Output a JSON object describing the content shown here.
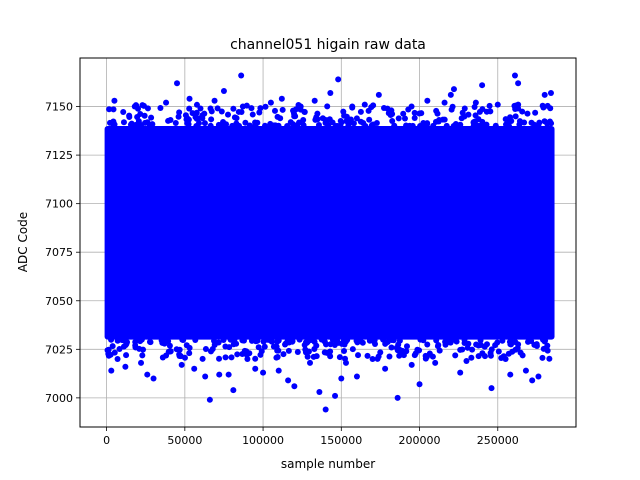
{
  "chart_data": {
    "type": "scatter",
    "title": "channel051 higain raw data",
    "xlabel": "sample number",
    "ylabel": "ADC Code",
    "xlim": [
      -17000,
      300000
    ],
    "ylim": [
      6985,
      7175
    ],
    "x_ticks": [
      0,
      50000,
      100000,
      150000,
      200000,
      250000
    ],
    "x_tick_labels": [
      "0",
      "50000",
      "100000",
      "150000",
      "200000",
      "250000"
    ],
    "y_ticks": [
      7000,
      7025,
      7050,
      7075,
      7100,
      7125,
      7150
    ],
    "y_tick_labels": [
      "7000",
      "7025",
      "7050",
      "7075",
      "7100",
      "7125",
      "7150"
    ],
    "grid": true,
    "series": [
      {
        "color": "#0000ff",
        "x_range": [
          0,
          285000
        ],
        "dense_band": [
          7030,
          7140
        ],
        "points": [
          [
            3000,
            7014
          ],
          [
            5000,
            7153
          ],
          [
            7000,
            7020
          ],
          [
            12000,
            7016
          ],
          [
            18000,
            7150
          ],
          [
            22000,
            7018
          ],
          [
            26000,
            7012
          ],
          [
            30000,
            7010
          ],
          [
            38000,
            7152
          ],
          [
            41000,
            7024
          ],
          [
            45000,
            7162
          ],
          [
            48000,
            7017
          ],
          [
            53000,
            7154
          ],
          [
            56000,
            7015
          ],
          [
            60000,
            7149
          ],
          [
            63000,
            7011
          ],
          [
            66000,
            6999
          ],
          [
            69000,
            7153
          ],
          [
            72000,
            7012
          ],
          [
            75000,
            7158
          ],
          [
            78000,
            7012
          ],
          [
            81000,
            7004
          ],
          [
            86000,
            7166
          ],
          [
            90000,
            7020
          ],
          [
            95000,
            7015
          ],
          [
            100000,
            7013
          ],
          [
            105000,
            7152
          ],
          [
            110000,
            7014
          ],
          [
            112000,
            7154
          ],
          [
            116000,
            7009
          ],
          [
            120000,
            7006
          ],
          [
            124000,
            7150
          ],
          [
            130000,
            7018
          ],
          [
            133000,
            7153
          ],
          [
            136000,
            7003
          ],
          [
            140000,
            6994
          ],
          [
            143000,
            7157
          ],
          [
            146000,
            7001
          ],
          [
            148000,
            7164
          ],
          [
            150000,
            7010
          ],
          [
            153000,
            7018
          ],
          [
            157000,
            7150
          ],
          [
            160000,
            7011
          ],
          [
            165000,
            7151
          ],
          [
            170000,
            7020
          ],
          [
            174000,
            7156
          ],
          [
            178000,
            7015
          ],
          [
            182000,
            7148
          ],
          [
            186000,
            7000
          ],
          [
            190000,
            7022
          ],
          [
            195000,
            7017
          ],
          [
            200000,
            7007
          ],
          [
            205000,
            7153
          ],
          [
            210000,
            7018
          ],
          [
            216000,
            7152
          ],
          [
            220000,
            7156
          ],
          [
            222000,
            7159
          ],
          [
            226000,
            7013
          ],
          [
            230000,
            7019
          ],
          [
            236000,
            7152
          ],
          [
            240000,
            7161
          ],
          [
            246000,
            7005
          ],
          [
            250000,
            7151
          ],
          [
            255000,
            7020
          ],
          [
            258000,
            7012
          ],
          [
            261000,
            7166
          ],
          [
            263000,
            7162
          ],
          [
            268000,
            7014
          ],
          [
            272000,
            7009
          ],
          [
            276000,
            7011
          ],
          [
            280000,
            7156
          ],
          [
            284000,
            7157
          ]
        ]
      }
    ]
  }
}
